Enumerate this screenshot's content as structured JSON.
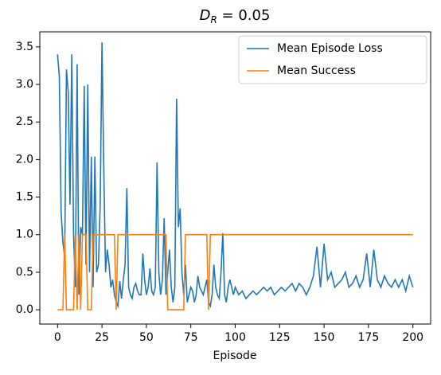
{
  "chart_data": {
    "type": "line",
    "title": {
      "main": "D",
      "subscript": "R",
      "rest": " = 0.05"
    },
    "x_label": "Episode",
    "x": [
      0,
      1,
      2,
      3,
      4,
      5,
      6,
      7,
      8,
      9,
      10,
      11,
      12,
      13,
      14,
      15,
      16,
      17,
      18,
      19,
      20,
      21,
      22,
      23,
      24,
      25,
      26,
      27,
      28,
      29,
      30,
      31,
      32,
      33,
      34,
      35,
      36,
      37,
      38,
      39,
      40,
      41,
      42,
      43,
      44,
      45,
      46,
      47,
      48,
      49,
      50,
      51,
      52,
      53,
      54,
      55,
      56,
      57,
      58,
      59,
      60,
      61,
      62,
      63,
      64,
      65,
      66,
      67,
      68,
      69,
      70,
      71,
      72,
      73,
      74,
      75,
      76,
      77,
      78,
      79,
      80,
      81,
      82,
      83,
      84,
      85,
      86,
      87,
      88,
      89,
      90,
      91,
      92,
      93,
      94,
      95,
      96,
      97,
      98,
      99,
      100,
      102,
      104,
      106,
      108,
      110,
      112,
      114,
      116,
      118,
      120,
      122,
      124,
      126,
      128,
      130,
      132,
      134,
      136,
      138,
      140,
      142,
      144,
      146,
      148,
      150,
      152,
      154,
      156,
      158,
      160,
      162,
      164,
      166,
      168,
      170,
      172,
      174,
      176,
      178,
      180,
      182,
      184,
      186,
      188,
      190,
      192,
      194,
      196,
      198,
      200
    ],
    "series": [
      {
        "name": "Mean Episode Loss",
        "color": "#1f77b4",
        "values": [
          3.4,
          3.1,
          1.3,
          0.9,
          0.7,
          3.2,
          2.9,
          1.4,
          3.4,
          1.0,
          0.3,
          3.27,
          0.2,
          1.1,
          1.0,
          2.98,
          0.6,
          3.0,
          0.5,
          2.04,
          0.3,
          2.04,
          0.5,
          0.6,
          1.4,
          3.56,
          1.9,
          0.5,
          0.8,
          0.6,
          0.3,
          0.4,
          0.2,
          0.1,
          0.05,
          0.38,
          0.15,
          0.4,
          0.6,
          1.62,
          0.3,
          0.2,
          0.15,
          0.3,
          0.35,
          0.25,
          0.2,
          0.2,
          0.75,
          0.4,
          0.2,
          0.3,
          0.55,
          0.25,
          0.2,
          0.3,
          1.96,
          0.5,
          0.2,
          0.4,
          1.22,
          0.2,
          0.5,
          0.8,
          0.3,
          0.1,
          0.3,
          2.81,
          1.1,
          1.35,
          0.5,
          0.2,
          0.6,
          0.1,
          0.2,
          0.3,
          0.25,
          0.1,
          0.2,
          0.45,
          0.3,
          0.25,
          0.2,
          0.3,
          0.4,
          0.1,
          0.05,
          0.2,
          0.6,
          0.3,
          0.2,
          0.15,
          0.5,
          1.02,
          0.2,
          0.1,
          0.3,
          0.4,
          0.3,
          0.2,
          0.3,
          0.2,
          0.25,
          0.15,
          0.2,
          0.25,
          0.2,
          0.25,
          0.3,
          0.25,
          0.3,
          0.2,
          0.25,
          0.3,
          0.25,
          0.3,
          0.35,
          0.25,
          0.35,
          0.3,
          0.2,
          0.3,
          0.45,
          0.84,
          0.3,
          0.88,
          0.4,
          0.5,
          0.3,
          0.35,
          0.4,
          0.5,
          0.3,
          0.35,
          0.45,
          0.3,
          0.4,
          0.75,
          0.3,
          0.8,
          0.4,
          0.3,
          0.45,
          0.35,
          0.3,
          0.4,
          0.3,
          0.4,
          0.25,
          0.45,
          0.3
        ]
      },
      {
        "name": "Mean Success",
        "color": "#ff7f0e",
        "values": [
          0,
          0,
          0,
          0,
          1,
          0,
          0,
          0,
          0,
          0,
          1,
          0,
          1,
          0,
          1,
          1,
          1,
          0,
          0,
          0,
          1,
          1,
          1,
          1,
          1,
          1,
          1,
          1,
          1,
          1,
          1,
          1,
          1,
          0,
          1,
          1,
          1,
          1,
          1,
          1,
          1,
          1,
          1,
          1,
          1,
          1,
          1,
          1,
          1,
          1,
          1,
          1,
          1,
          1,
          1,
          1,
          1,
          1,
          1,
          1,
          1,
          1,
          0,
          0,
          0,
          0,
          0,
          0,
          0,
          0,
          0,
          0,
          1,
          1,
          1,
          1,
          1,
          1,
          1,
          1,
          1,
          1,
          1,
          1,
          1,
          0,
          1,
          1,
          1,
          1,
          1,
          1,
          1,
          1,
          1,
          1,
          1,
          1,
          1,
          1,
          1,
          1,
          1,
          1,
          1,
          1,
          1,
          1,
          1,
          1,
          1,
          1,
          1,
          1,
          1,
          1,
          1,
          1,
          1,
          1,
          1,
          1,
          1,
          1,
          1,
          1,
          1,
          1,
          1,
          1,
          1,
          1,
          1,
          1,
          1,
          1,
          1,
          1,
          1,
          1,
          1,
          1,
          1,
          1,
          1,
          1,
          1,
          1,
          1,
          1,
          1
        ]
      }
    ],
    "xlim": [
      -10,
      210
    ],
    "xticks": [
      0,
      25,
      50,
      75,
      100,
      125,
      150,
      175,
      200
    ],
    "ylim": [
      -0.19,
      3.7
    ],
    "yticks": [
      {
        "value": 0,
        "label": "0.0"
      },
      0.5,
      {
        "value": 1,
        "label": "1.0"
      },
      1.5,
      {
        "value": 2,
        "label": "2.0"
      },
      2.5,
      {
        "value": 3,
        "label": "3.0"
      },
      3.5
    ],
    "legend": "upper right"
  }
}
